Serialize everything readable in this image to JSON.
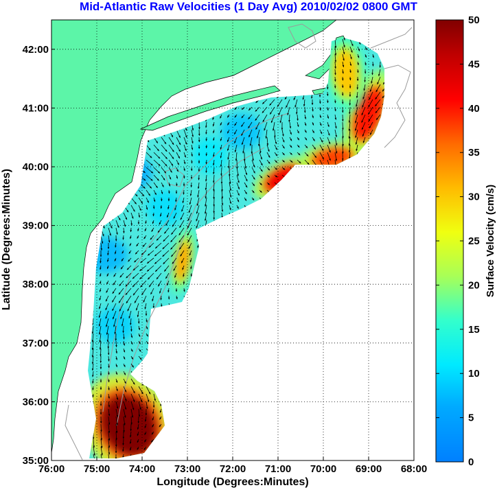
{
  "chart_data": {
    "type": "heatmap",
    "title": "Mid-Atlantic Raw Velocities (1 Day Avg) 2010/02/02 0800 GMT",
    "xlabel": "Longitude (Degrees:Minutes)",
    "ylabel": "Latitude (Degrees:Minutes)",
    "xlim": [
      -76,
      -68
    ],
    "ylim": [
      35,
      42.5
    ],
    "xticks": [
      {
        "value": -76,
        "label": "76:00"
      },
      {
        "value": -75,
        "label": "75:00"
      },
      {
        "value": -74,
        "label": "74:00"
      },
      {
        "value": -73,
        "label": "73:00"
      },
      {
        "value": -72,
        "label": "72:00"
      },
      {
        "value": -71,
        "label": "71:00"
      },
      {
        "value": -70,
        "label": "70:00"
      },
      {
        "value": -69,
        "label": "69:00"
      },
      {
        "value": -68,
        "label": "68:00"
      }
    ],
    "yticks": [
      {
        "value": 35,
        "label": "35:00"
      },
      {
        "value": 36,
        "label": "36:00"
      },
      {
        "value": 37,
        "label": "37:00"
      },
      {
        "value": 38,
        "label": "38:00"
      },
      {
        "value": 39,
        "label": "39:00"
      },
      {
        "value": 40,
        "label": "40:00"
      },
      {
        "value": 41,
        "label": "41:00"
      },
      {
        "value": 42,
        "label": "42:00"
      }
    ],
    "grid": true,
    "colorbar": {
      "label": "Surface Velocity (cm/s)",
      "min": 0,
      "max": 50,
      "ticks": [
        0,
        5,
        10,
        15,
        20,
        25,
        30,
        35,
        40,
        45,
        50
      ],
      "colormap": "jet"
    },
    "colors": {
      "land": "#5cf5a8",
      "title": "#0000ff"
    },
    "hotspots": [
      {
        "lon": -74.3,
        "lat": 35.6,
        "value": 50
      },
      {
        "lon": -70.9,
        "lat": 39.8,
        "value": 42
      },
      {
        "lon": -69.0,
        "lat": 40.9,
        "value": 40
      },
      {
        "lon": -69.8,
        "lat": 40.15,
        "value": 38
      },
      {
        "lon": -73.1,
        "lat": 38.4,
        "value": 32
      },
      {
        "lon": -69.5,
        "lat": 41.6,
        "value": 30
      }
    ]
  }
}
